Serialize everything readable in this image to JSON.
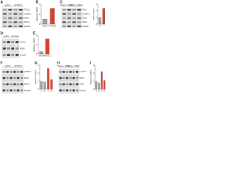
{
  "panels": [
    {
      "letter": "A",
      "kind": "blot",
      "header": [
        "shCtrl",
        "shTSC2"
      ],
      "rows": [
        "TSC2",
        "p-S6K1",
        "S6K1",
        "PDK1",
        "β-actin"
      ]
    },
    {
      "letter": "B",
      "kind": "bar",
      "ylabel": "Relative mRNA",
      "categories": [
        "shCtrl",
        "shTSC2"
      ],
      "values": [
        1,
        3.2
      ],
      "colors": [
        "#9e9e9e",
        "#d9402b"
      ],
      "ylim": [
        0,
        4
      ],
      "yticks": [
        0,
        2,
        4
      ]
    },
    {
      "letter": "C",
      "kind": "blot",
      "header": [
        "Tsc2+/+ MEFs",
        "Tsc2-/- MEFs"
      ],
      "rows": [
        "Tsc2",
        "p-S6K1",
        "S6K1",
        "Pdk1",
        "β-actin"
      ]
    },
    {
      "letter": "",
      "kind": "bar",
      "ylabel": "Pdk1 mRNA",
      "categories": [
        "+/+",
        "-/-"
      ],
      "values": [
        1,
        2.4
      ],
      "colors": [
        "#9e9e9e",
        "#d9402b"
      ],
      "ylim": [
        0,
        3
      ],
      "yticks": [
        0,
        1,
        2,
        3
      ]
    },
    {
      "letter": "D",
      "kind": "blot",
      "header": [
        "shCtrl",
        "shTSC2"
      ],
      "rows": [
        "TSC2",
        "PDK1",
        "β-actin"
      ]
    },
    {
      "letter": "E",
      "kind": "bar",
      "ylabel": "Relative PDK1",
      "categories": [
        "shCtrl",
        "shTSC2"
      ],
      "values": [
        1,
        6.5
      ],
      "colors": [
        "#9e9e9e",
        "#d9402b"
      ],
      "ylim": [
        0,
        8
      ],
      "yticks": [
        0,
        4,
        8
      ]
    },
    {
      "letter": "F",
      "kind": "blot",
      "header": [
        "shCtrl",
        "shTSC2"
      ],
      "rows": [
        "p-S6K1",
        "S6K1",
        "PDK1",
        "β-actin"
      ]
    },
    {
      "letter": "G",
      "kind": "bar",
      "ylabel": "Relative mRNA",
      "categories": [
        "V",
        "R",
        "V",
        "R"
      ],
      "values": [
        1,
        0.9,
        2.6,
        1.2
      ],
      "colors": [
        "#9e9e9e",
        "#9e9e9e",
        "#d9402b",
        "#d9402b"
      ],
      "ylim": [
        0,
        3
      ],
      "yticks": [
        0,
        1,
        2,
        3
      ]
    },
    {
      "letter": "H",
      "kind": "blot",
      "header": [
        "Tsc2+/+ MEFs",
        "Tsc2-/- MEFs"
      ],
      "rows": [
        "p-S6K1",
        "S6K1",
        "Pdk1",
        "β-actin"
      ]
    },
    {
      "letter": "I",
      "kind": "bar",
      "ylabel": "Relative mRNA",
      "categories": [
        "V",
        "R",
        "V",
        "R"
      ],
      "values": [
        1,
        0.8,
        2.2,
        1.1
      ],
      "colors": [
        "#9e9e9e",
        "#9e9e9e",
        "#d9402b",
        "#d9402b"
      ],
      "ylim": [
        0,
        3
      ],
      "yticks": [
        0,
        1,
        2,
        3
      ]
    }
  ]
}
